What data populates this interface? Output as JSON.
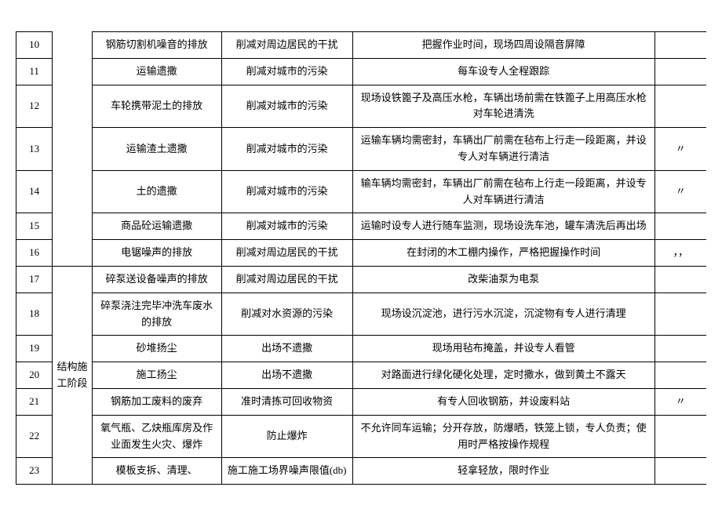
{
  "rows": [
    {
      "num": "10",
      "phase": "",
      "factor": "钢筋切割机噪音的排放",
      "target": "削减对周边居民的干扰",
      "measure": "把握作业时间，现场四周设隔音屏障",
      "note": ""
    },
    {
      "num": "11",
      "phase": "",
      "factor": "运输遗撒",
      "target": "削减对城市的污染",
      "measure": "每车设专人全程跟踪",
      "note": ""
    },
    {
      "num": "12",
      "phase": "",
      "factor": "车轮携带泥土的排放",
      "target": "削减对城市的污染",
      "measure": "现场设铁篦子及高压水枪，车辆出场前需在铁篦子上用高压水枪对车轮进清洗",
      "note": ""
    },
    {
      "num": "13",
      "phase": "",
      "factor": "运输渣土遗撒",
      "target": "削减对城市的污染",
      "measure": "运输车辆均需密封，车辆出厂前需在毡布上行走一段距离，并设专人对车辆进行清洁",
      "note": "〃"
    },
    {
      "num": "14",
      "phase": "",
      "factor": "土的遗撒",
      "target": "削减对城市的污染",
      "measure": "输车辆均需密封，车辆出厂前需在毡布上行走一段距离，并设专人对车辆进行清洁",
      "note": "〃"
    },
    {
      "num": "15",
      "phase": "",
      "factor": "商品砼运输遗撒",
      "target": "削减对城市的污染",
      "measure": "运输时设专人进行随车监测，现场设洗车池，罐车清洗后再出场",
      "note": ""
    },
    {
      "num": "16",
      "phase": "",
      "factor": "电锯噪声的排放",
      "target": "削减对周边居民的干扰",
      "measure": "在封闭的木工棚内操作，严格把握操作时间",
      "note": "，，"
    },
    {
      "num": "17",
      "phase": "结构施工阶段",
      "factor": "碎泵送设备噪声的排放",
      "target": "削减对周边居民的干扰",
      "measure": "改柴油泵为电泵",
      "note": ""
    },
    {
      "num": "18",
      "phase": "",
      "factor": "碎泵浇注完毕冲洗车废水的排放",
      "target": "削减对水资源的污染",
      "measure": "现场设沉淀池，进行污水沉淀，沉淀物有专人进行清理",
      "note": ""
    },
    {
      "num": "19",
      "phase": "",
      "factor": "砂堆扬尘",
      "target": "出场不遗撒",
      "measure": "现场用毡布掩盖，并设专人看管",
      "note": ""
    },
    {
      "num": "20",
      "phase": "",
      "factor": "施工扬尘",
      "target": "出场不遗撒",
      "measure": "对路面进行绿化硬化处理，定时撒水，做到黄土不露天",
      "note": ""
    },
    {
      "num": "21",
      "phase": "",
      "factor": "钢筋加工废料的废弃",
      "target": "准时清拣可回收物资",
      "measure": "有专人回收钢筋，并设废料站",
      "note": "〃"
    },
    {
      "num": "22",
      "phase": "",
      "factor": "氧气瓶、乙炔瓶库房及作业面发生火灾、爆炸",
      "target": "防止爆炸",
      "measure": "不允许同车运输；分开存放，防爆晒，铁笼上锁，专人负责；使用时严格按操作规程",
      "note": ""
    },
    {
      "num": "23",
      "phase": "",
      "factor": "模板支拆、清理、",
      "target": "施工施工场界噪声限值(db)",
      "measure": "轻拿轻放，限时作业",
      "note": ""
    }
  ]
}
